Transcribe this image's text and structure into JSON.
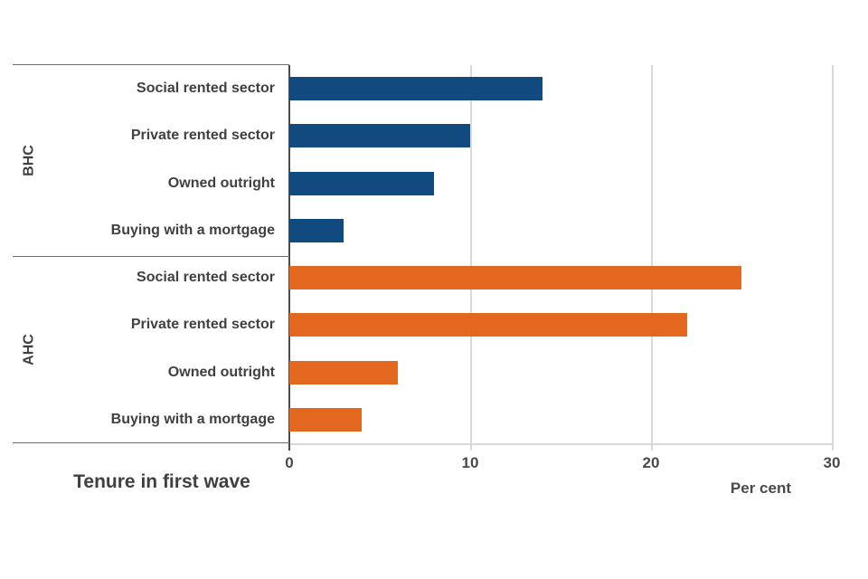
{
  "chart_data": {
    "type": "bar",
    "orientation": "horizontal",
    "xlabel": "Per cent",
    "bottom_label": "Tenure in first wave",
    "xlim": [
      0,
      30
    ],
    "xticks": [
      0,
      10,
      20,
      30
    ],
    "grid": "vertical gridlines at 10, 20, 30; no legend; no title",
    "groups": [
      {
        "name": "BHC",
        "color": "#114a7e",
        "rows": [
          {
            "label": "Social rented sector",
            "value": 14
          },
          {
            "label": "Private rented sector",
            "value": 10
          },
          {
            "label": "Owned outright",
            "value": 8
          },
          {
            "label": "Buying with a mortgage",
            "value": 3
          }
        ]
      },
      {
        "name": "AHC",
        "color": "#e2671f",
        "rows": [
          {
            "label": "Social rented sector",
            "value": 25
          },
          {
            "label": "Private rented sector",
            "value": 22
          },
          {
            "label": "Owned outright",
            "value": 6
          },
          {
            "label": "Buying with a mortgage",
            "value": 4
          }
        ]
      }
    ],
    "style_colors": {
      "bhc_bar": "#114a7e",
      "ahc_bar": "#e2671f",
      "gridline": "#d9d9d9",
      "panel_border": "#6e6e6e",
      "axis_line": "#4d4d4d",
      "text": "#404040",
      "background": "#ffffff"
    }
  }
}
